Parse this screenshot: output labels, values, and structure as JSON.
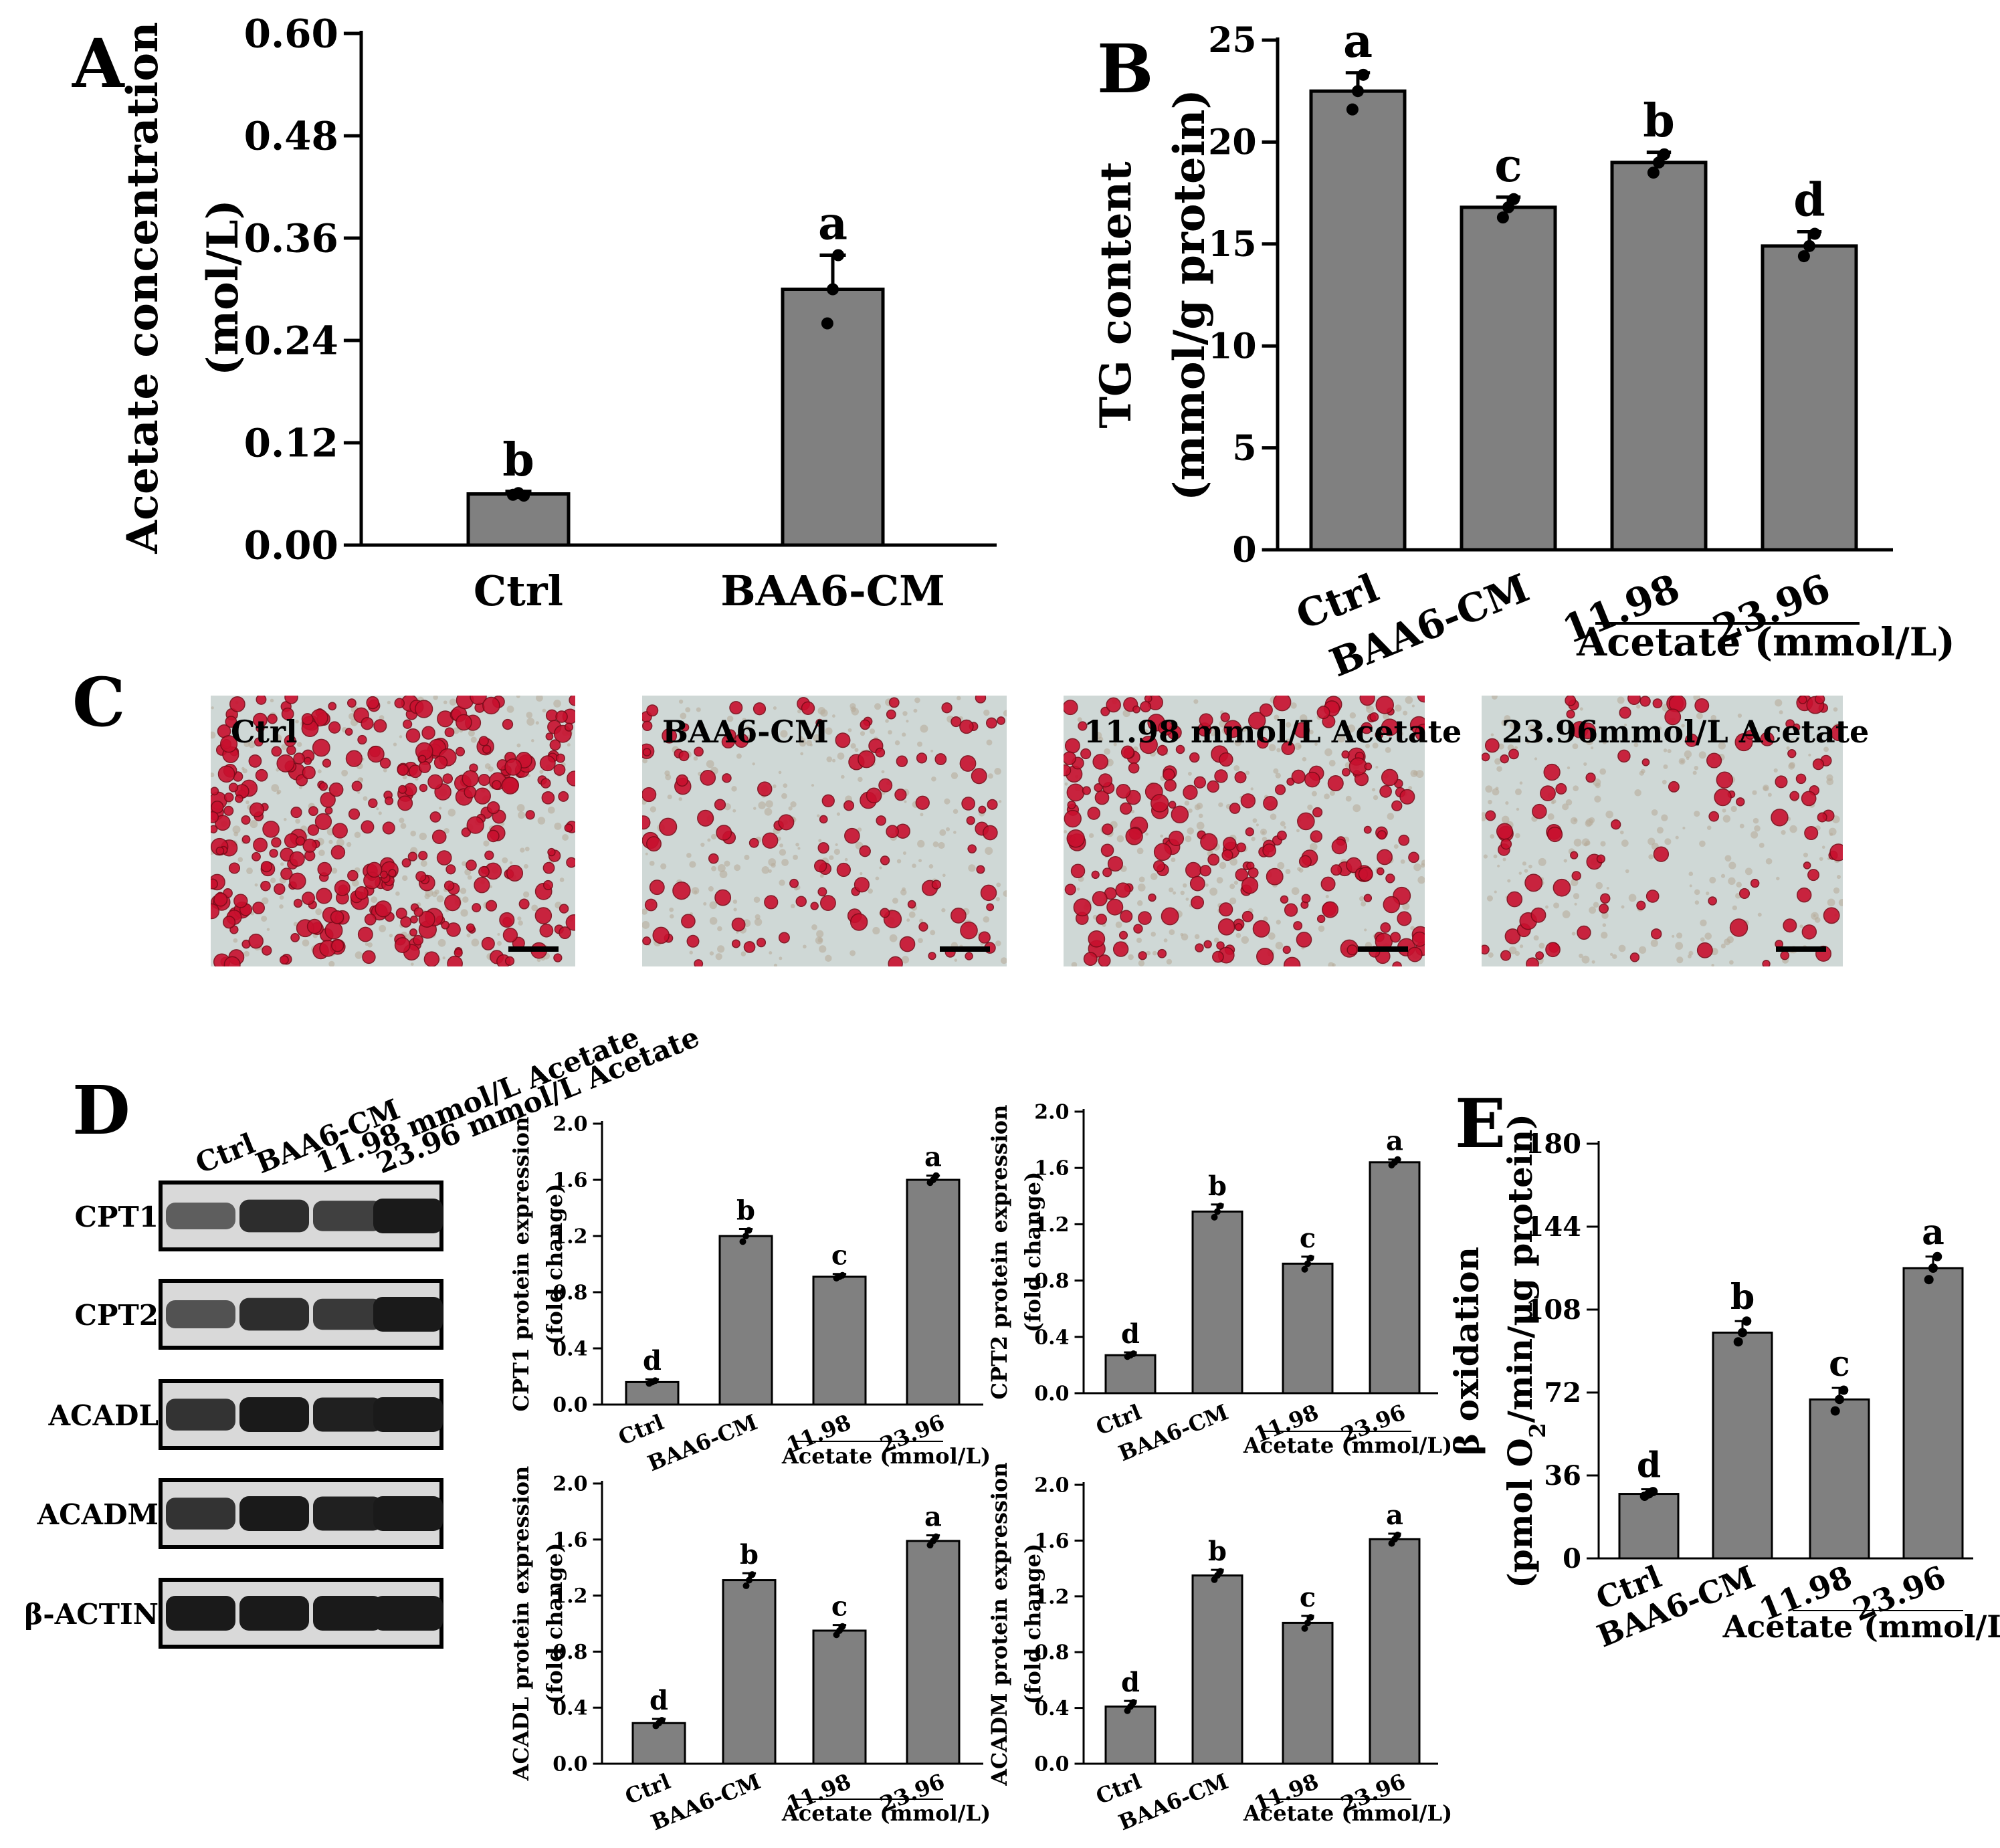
{
  "panels": {
    "A": "A",
    "B": "B",
    "C": "C",
    "D": "D",
    "E": "E"
  },
  "colors": {
    "bar": "#808080",
    "stroke": "#000000",
    "point": "#000000",
    "stain_red": "#c8102e",
    "stain_bg": "#cfd8d6",
    "blot_band": "#1a1a1a",
    "blot_bg": "#d9d9d9"
  },
  "chart_data": [
    {
      "id": "A",
      "type": "bar",
      "categories": [
        "Ctrl",
        "BAA6-CM"
      ],
      "values": [
        0.06,
        0.3
      ],
      "errors": [
        0.003,
        0.04
      ],
      "points": [
        [
          0.059,
          0.061,
          0.058
        ],
        [
          0.26,
          0.3,
          0.34
        ]
      ],
      "letters": [
        "b",
        "a"
      ],
      "ylabel": [
        "Acetate concentration",
        "(mol/L)"
      ],
      "yticks": [
        "0.00",
        "0.12",
        "0.24",
        "0.36",
        "0.48",
        "0.60"
      ],
      "ylim": [
        0,
        0.6
      ]
    },
    {
      "id": "B",
      "type": "bar",
      "categories": [
        "Ctrl",
        "BAA6-CM",
        "11.98",
        "23.96"
      ],
      "values": [
        22.5,
        16.8,
        19.0,
        14.9
      ],
      "errors": [
        0.9,
        0.5,
        0.5,
        0.7
      ],
      "points": [
        [
          21.6,
          22.5,
          23.3
        ],
        [
          16.3,
          16.8,
          17.2
        ],
        [
          18.5,
          19.0,
          19.4
        ],
        [
          14.4,
          14.9,
          15.5
        ]
      ],
      "letters": [
        "a",
        "c",
        "b",
        "d"
      ],
      "ylabel": [
        "TG content",
        "(mmol/g protein)"
      ],
      "yticks": [
        "0",
        "5",
        "10",
        "15",
        "20",
        "25"
      ],
      "ylim": [
        0,
        25
      ],
      "group_label": "Acetate (mmol/L)"
    },
    {
      "id": "CPT1",
      "type": "bar",
      "categories": [
        "Ctrl",
        "BAA6-CM",
        "11.98",
        "23.96"
      ],
      "values": [
        0.16,
        1.2,
        0.91,
        1.6
      ],
      "errors": [
        0.02,
        0.05,
        0.02,
        0.03
      ],
      "points": [
        [
          0.15,
          0.16,
          0.17
        ],
        [
          1.16,
          1.2,
          1.24
        ],
        [
          0.9,
          0.91,
          0.92
        ],
        [
          1.58,
          1.6,
          1.63
        ]
      ],
      "letters": [
        "d",
        "b",
        "c",
        "a"
      ],
      "ylabel": [
        "CPT1 protein expression",
        "(fold change)"
      ],
      "yticks": [
        "0.0",
        "0.4",
        "0.8",
        "1.2",
        "1.6",
        "2.0"
      ],
      "ylim": [
        0,
        2.0
      ],
      "group_label": "Acetate (mmol/L)"
    },
    {
      "id": "CPT2",
      "type": "bar",
      "categories": [
        "Ctrl",
        "BAA6-CM",
        "11.98",
        "23.96"
      ],
      "values": [
        0.27,
        1.29,
        0.92,
        1.64
      ],
      "errors": [
        0.02,
        0.05,
        0.05,
        0.02
      ],
      "points": [
        [
          0.26,
          0.27,
          0.28
        ],
        [
          1.25,
          1.29,
          1.33
        ],
        [
          0.88,
          0.92,
          0.96
        ],
        [
          1.62,
          1.64,
          1.66
        ]
      ],
      "letters": [
        "d",
        "b",
        "c",
        "a"
      ],
      "ylabel": [
        "CPT2 protein expression",
        "(fold change)"
      ],
      "yticks": [
        "0.0",
        "0.4",
        "0.8",
        "1.2",
        "1.6",
        "2.0"
      ],
      "ylim": [
        0,
        2.0
      ],
      "group_label": "Acetate (mmol/L)"
    },
    {
      "id": "ACADL",
      "type": "bar",
      "categories": [
        "Ctrl",
        "BAA6-CM",
        "11.98",
        "23.96"
      ],
      "values": [
        0.29,
        1.31,
        0.95,
        1.59
      ],
      "errors": [
        0.03,
        0.05,
        0.04,
        0.04
      ],
      "points": [
        [
          0.27,
          0.29,
          0.31
        ],
        [
          1.27,
          1.31,
          1.35
        ],
        [
          0.92,
          0.95,
          0.98
        ],
        [
          1.56,
          1.59,
          1.62
        ]
      ],
      "letters": [
        "d",
        "b",
        "c",
        "a"
      ],
      "ylabel": [
        "ACADL protein expression",
        "(fold change)"
      ],
      "yticks": [
        "0.0",
        "0.4",
        "0.8",
        "1.2",
        "1.6",
        "2.0"
      ],
      "ylim": [
        0,
        2.0
      ],
      "group_label": "Acetate (mmol/L)"
    },
    {
      "id": "ACADM",
      "type": "bar",
      "categories": [
        "Ctrl",
        "BAA6-CM",
        "11.98",
        "23.96"
      ],
      "values": [
        0.41,
        1.35,
        1.01,
        1.61
      ],
      "errors": [
        0.04,
        0.04,
        0.05,
        0.04
      ],
      "points": [
        [
          0.38,
          0.41,
          0.44
        ],
        [
          1.32,
          1.35,
          1.38
        ],
        [
          0.97,
          1.01,
          1.05
        ],
        [
          1.58,
          1.61,
          1.64
        ]
      ],
      "letters": [
        "d",
        "b",
        "c",
        "a"
      ],
      "ylabel": [
        "ACADM protein expression",
        "(fold change)"
      ],
      "yticks": [
        "0.0",
        "0.4",
        "0.8",
        "1.2",
        "1.6",
        "2.0"
      ],
      "ylim": [
        0,
        2.0
      ],
      "group_label": "Acetate (mmol/L)"
    },
    {
      "id": "E",
      "type": "bar",
      "categories": [
        "Ctrl",
        "BAA6-CM",
        "11.98",
        "23.96"
      ],
      "values": [
        28,
        98,
        69,
        126
      ],
      "errors": [
        2,
        5,
        5,
        5
      ],
      "points": [
        [
          27,
          28,
          29
        ],
        [
          94,
          98,
          103
        ],
        [
          64,
          69,
          73
        ],
        [
          121,
          126,
          131
        ]
      ],
      "letters": [
        "d",
        "b",
        "c",
        "a"
      ],
      "ylabel": [
        "β oxidation",
        "(pmol O",
        "2",
        "/min/μg protein)"
      ],
      "yticks": [
        "0",
        "36",
        "72",
        "108",
        "144",
        "180"
      ],
      "ylim": [
        0,
        180
      ],
      "group_label": "Acetate (mmol/L)"
    }
  ],
  "stain_images": [
    {
      "label": "Ctrl",
      "density": 0.85
    },
    {
      "label": "BAA6-CM",
      "density": 0.3
    },
    {
      "label": "11.98 mmol/L Acetate",
      "density": 0.55
    },
    {
      "label": "23.96mmol/L Acetate",
      "density": 0.25
    }
  ],
  "blot": {
    "lanes": [
      "Ctrl",
      "BAA6-CM",
      "11.98 mmol/L Acetate",
      "23.96 mmol/L Acetate"
    ],
    "rows": [
      {
        "label": "CPT1",
        "intensity": [
          0.45,
          0.85,
          0.7,
          1.0
        ]
      },
      {
        "label": "CPT2",
        "intensity": [
          0.55,
          0.85,
          0.75,
          1.0
        ]
      },
      {
        "label": "ACADL",
        "intensity": [
          0.8,
          1.0,
          0.95,
          1.0
        ]
      },
      {
        "label": "ACADM",
        "intensity": [
          0.8,
          1.0,
          0.95,
          1.0
        ]
      },
      {
        "label": "β-ACTIN",
        "intensity": [
          1.0,
          1.0,
          1.0,
          1.0
        ]
      }
    ]
  }
}
